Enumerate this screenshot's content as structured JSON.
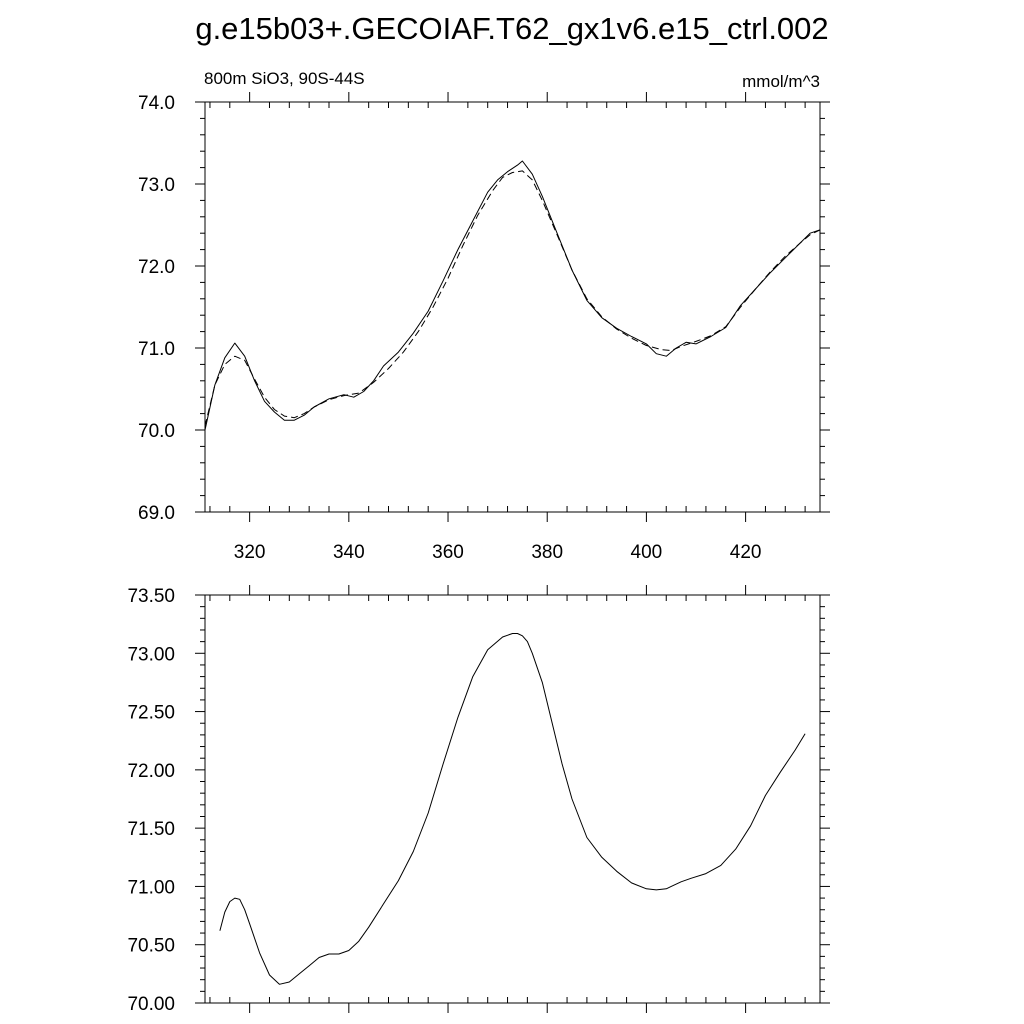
{
  "figure": {
    "title": "g.e15b03+.GECOIAF.T62_gx1v6.e15_ctrl.002"
  },
  "chart_data": [
    {
      "type": "line",
      "title": "",
      "left_subtitle": "800m SiO3, 90S-44S",
      "right_subtitle": "mmol/m^3",
      "xlabel": "",
      "ylabel": "",
      "xlim": [
        311,
        435
      ],
      "ylim": [
        69.0,
        74.0
      ],
      "xticks": [
        320,
        340,
        360,
        380,
        400,
        420
      ],
      "xtick_labels": [
        "320",
        "340",
        "360",
        "380",
        "400",
        "420"
      ],
      "yticks": [
        69.0,
        70.0,
        71.0,
        72.0,
        73.0,
        74.0
      ],
      "ytick_labels": [
        "69.0",
        "70.0",
        "71.0",
        "72.0",
        "73.0",
        "74.0"
      ],
      "grid": false,
      "legend": "none",
      "series": [
        {
          "style": "solid",
          "x": [
            311,
            313,
            315,
            317,
            319,
            321,
            323,
            325,
            327,
            329,
            331,
            333,
            336,
            339,
            341,
            343,
            345,
            347,
            350,
            353,
            356,
            359,
            362,
            365,
            368,
            370,
            372,
            374,
            375,
            377,
            379,
            382,
            385,
            388,
            391,
            394,
            397,
            400,
            402,
            404,
            406,
            408,
            410,
            413,
            416,
            419,
            422,
            425,
            428,
            431,
            433,
            435
          ],
          "y": [
            70.0,
            70.55,
            70.88,
            71.06,
            70.9,
            70.6,
            70.35,
            70.22,
            70.12,
            70.12,
            70.18,
            70.28,
            70.38,
            70.43,
            70.4,
            70.47,
            70.6,
            70.78,
            70.95,
            71.18,
            71.45,
            71.82,
            72.2,
            72.55,
            72.9,
            73.05,
            73.15,
            73.23,
            73.28,
            73.12,
            72.85,
            72.4,
            71.95,
            71.58,
            71.37,
            71.24,
            71.14,
            71.05,
            70.93,
            70.9,
            71.0,
            71.07,
            71.05,
            71.14,
            71.25,
            71.52,
            71.72,
            71.92,
            72.1,
            72.28,
            72.4,
            72.44
          ]
        },
        {
          "style": "dashed",
          "x": [
            311,
            313,
            315,
            317,
            319,
            321,
            323,
            325,
            327,
            329,
            331,
            333,
            336,
            339,
            342,
            345,
            348,
            351,
            354,
            357,
            360,
            363,
            366,
            369,
            371,
            373,
            375,
            377,
            379,
            382,
            385,
            388,
            391,
            394,
            397,
            400,
            403,
            405,
            407,
            410,
            413,
            416,
            419,
            422,
            425,
            428,
            431,
            433,
            435
          ],
          "y": [
            70.05,
            70.55,
            70.8,
            70.9,
            70.85,
            70.62,
            70.4,
            70.25,
            70.17,
            70.15,
            70.2,
            70.28,
            70.37,
            70.42,
            70.45,
            70.58,
            70.75,
            70.95,
            71.2,
            71.5,
            71.85,
            72.25,
            72.62,
            72.92,
            73.08,
            73.14,
            73.16,
            73.05,
            72.8,
            72.38,
            71.95,
            71.6,
            71.38,
            71.23,
            71.12,
            71.03,
            70.98,
            70.97,
            71.02,
            71.08,
            71.15,
            71.26,
            71.5,
            71.72,
            71.93,
            72.12,
            72.28,
            72.38,
            72.44
          ]
        }
      ]
    },
    {
      "type": "line",
      "title": "",
      "xlabel": "",
      "ylabel": "",
      "xlim": [
        311,
        435
      ],
      "ylim": [
        70.0,
        73.5
      ],
      "xticks": [
        320,
        340,
        360,
        380,
        400,
        420
      ],
      "yticks": [
        70.0,
        70.5,
        71.0,
        71.5,
        72.0,
        72.5,
        73.0,
        73.5
      ],
      "ytick_labels": [
        "70.00",
        "70.50",
        "71.00",
        "71.50",
        "72.00",
        "72.50",
        "73.00",
        "73.50"
      ],
      "grid": false,
      "legend": "none",
      "series": [
        {
          "style": "solid",
          "x": [
            314,
            315,
            316,
            317,
            318,
            319,
            320,
            322,
            324,
            326,
            328,
            330,
            332,
            334,
            336,
            338,
            340,
            342,
            344,
            347,
            350,
            353,
            356,
            359,
            362,
            365,
            368,
            371,
            373,
            374,
            375,
            376,
            377,
            379,
            381,
            383,
            385,
            388,
            391,
            394,
            397,
            400,
            402,
            404,
            405,
            407,
            409,
            412,
            415,
            418,
            421,
            424,
            427,
            430,
            432
          ],
          "y": [
            70.62,
            70.78,
            70.87,
            70.9,
            70.89,
            70.8,
            70.68,
            70.43,
            70.24,
            70.16,
            70.18,
            70.25,
            70.32,
            70.39,
            70.42,
            70.42,
            70.45,
            70.53,
            70.65,
            70.85,
            71.05,
            71.3,
            71.63,
            72.05,
            72.45,
            72.8,
            73.03,
            73.14,
            73.17,
            73.17,
            73.15,
            73.1,
            73.0,
            72.75,
            72.4,
            72.05,
            71.75,
            71.42,
            71.25,
            71.13,
            71.03,
            70.98,
            70.97,
            70.98,
            71.0,
            71.04,
            71.07,
            71.11,
            71.18,
            71.32,
            71.52,
            71.78,
            71.98,
            72.17,
            72.31
          ]
        }
      ]
    }
  ]
}
